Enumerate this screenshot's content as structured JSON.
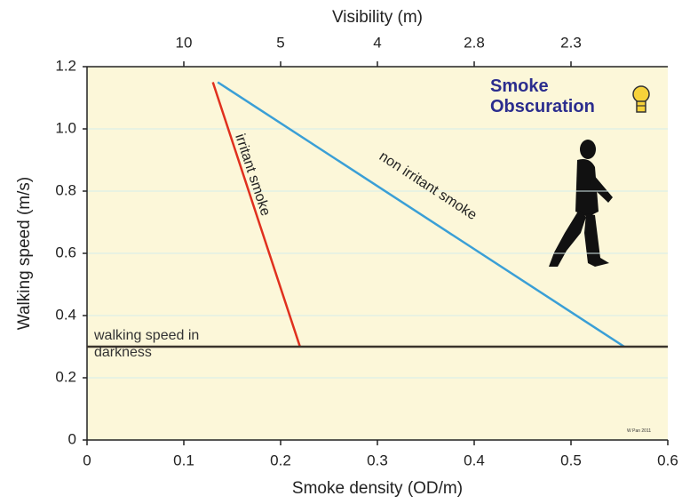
{
  "chart_data": {
    "type": "line",
    "title": "Smoke Obscuration",
    "xlabel": "Smoke density (OD/m)",
    "ylabel": "Walking speed (m/s)",
    "x2label": "Visibility (m)",
    "credit": "W Pan 2011",
    "xlim": [
      0,
      0.6
    ],
    "ylim": [
      0,
      1.2
    ],
    "xticks": [
      0,
      0.1,
      0.2,
      0.3,
      0.4,
      0.5,
      0.6
    ],
    "yticks": [
      0,
      0.2,
      0.4,
      0.6,
      0.8,
      {
        "value": 1,
        "label": "1.0"
      },
      1.2
    ],
    "x2ticks": [
      {
        "value": 0.1,
        "label": "10"
      },
      {
        "value": 0.2,
        "label": "5"
      },
      {
        "value": 0.3,
        "label": "4"
      },
      {
        "value": 0.4,
        "label": "2.8"
      },
      {
        "value": 0.5,
        "label": "2.3"
      }
    ],
    "grid": true,
    "series": [
      {
        "name": "irritant smoke",
        "color": "#e0301e",
        "x": [
          0.13,
          0.22
        ],
        "values": [
          1.15,
          0.3
        ]
      },
      {
        "name": "non irritant smoke",
        "color": "#3a9fd6",
        "x": [
          0.135,
          0.555
        ],
        "values": [
          1.15,
          0.3
        ]
      },
      {
        "name": "walking speed in darkness",
        "color": "#3a342c",
        "x": [
          0,
          0.6
        ],
        "values": [
          0.3,
          0.3
        ]
      }
    ]
  }
}
